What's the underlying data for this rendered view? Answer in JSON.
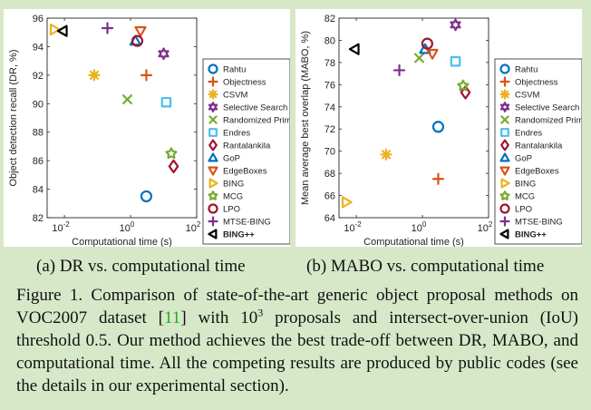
{
  "subcaptions": {
    "a": "(a) DR vs. computational time",
    "b": "(b) MABO vs. computational time"
  },
  "caption": {
    "label": "Figure 1.",
    "text_1": " Comparison of state-of-the-art generic object proposal methods on VOC2007 dataset [",
    "ref": "11",
    "text_2": "] with 10",
    "sup": "3",
    "text_3": " proposals and intersect-over-union (IoU) threshold 0.5. Our method achieves the best trade-off between DR, MABO, and computational time. All the competing results are produced by public codes (see the details in our experimental section)."
  },
  "methods": [
    {
      "name": "Rahtu",
      "marker": "circle",
      "color": "#0072bd"
    },
    {
      "name": "Objectness",
      "marker": "plus",
      "color": "#d95319"
    },
    {
      "name": "CSVM",
      "marker": "asterisk",
      "color": "#edb120"
    },
    {
      "name": "Selective Search",
      "marker": "hexagram",
      "color": "#7e2f8e"
    },
    {
      "name": "Randomized Prim",
      "marker": "x",
      "color": "#77ac30"
    },
    {
      "name": "Endres",
      "marker": "square",
      "color": "#4dbeee"
    },
    {
      "name": "Rantalankila",
      "marker": "diamond",
      "color": "#a2142f"
    },
    {
      "name": "GoP",
      "marker": "triangle-up",
      "color": "#0072bd"
    },
    {
      "name": "EdgeBoxes",
      "marker": "triangle-down",
      "color": "#d95319"
    },
    {
      "name": "BING",
      "marker": "triangle-right",
      "color": "#edb120"
    },
    {
      "name": "MCG",
      "marker": "pentagram",
      "color": "#77ac30"
    },
    {
      "name": "LPO",
      "marker": "circle",
      "color": "#a2142f"
    },
    {
      "name": "MTSE-BING",
      "marker": "plus",
      "color": "#7e2f8e"
    },
    {
      "name": "BING++",
      "marker": "triangle-left",
      "color": "#000000",
      "bold": true
    }
  ],
  "chart_data": [
    {
      "type": "scatter",
      "xlabel": "Computational time (s)",
      "ylabel": "Object detection recall (DR, %)",
      "xscale": "log",
      "xlim": [
        0.003,
        100
      ],
      "ylim": [
        82,
        96
      ],
      "xticks": [
        0.01,
        1,
        100
      ],
      "xtick_labels": [
        {
          "base": "10",
          "exp": "-2"
        },
        {
          "base": "10",
          "exp": "0"
        },
        {
          "base": "10",
          "exp": "2"
        }
      ],
      "yticks": [
        82,
        84,
        86,
        88,
        90,
        92,
        94,
        96
      ],
      "legend": "right",
      "grid": false,
      "points": {
        "Rahtu": [
          3,
          83.5
        ],
        "Objectness": [
          3,
          92
        ],
        "CSVM": [
          0.08,
          92
        ],
        "Selective Search": [
          10,
          93.5
        ],
        "Randomized Prim": [
          0.8,
          90.3
        ],
        "Endres": [
          12,
          90.1
        ],
        "Rantalankila": [
          20,
          85.6
        ],
        "GoP": [
          1.4,
          94.4
        ],
        "EdgeBoxes": [
          2,
          95.1
        ],
        "BING": [
          0.005,
          95.2
        ],
        "MCG": [
          17,
          86.5
        ],
        "LPO": [
          1.6,
          94.4
        ],
        "MTSE-BING": [
          0.2,
          95.3
        ],
        "BING++": [
          0.009,
          95.1
        ]
      }
    },
    {
      "type": "scatter",
      "xlabel": "Computational time (s)",
      "ylabel": "Mean average best overlap (MABO, %)",
      "xscale": "log",
      "xlim": [
        0.003,
        100
      ],
      "ylim": [
        64,
        82
      ],
      "xticks": [
        0.01,
        1,
        100
      ],
      "xtick_labels": [
        {
          "base": "10",
          "exp": "-2"
        },
        {
          "base": "10",
          "exp": "0"
        },
        {
          "base": "10",
          "exp": "2"
        }
      ],
      "yticks": [
        64,
        66,
        68,
        70,
        72,
        74,
        76,
        78,
        80,
        82
      ],
      "legend": "right",
      "grid": false,
      "points": {
        "Rahtu": [
          3,
          72.2
        ],
        "Objectness": [
          3,
          67.5
        ],
        "CSVM": [
          0.08,
          69.7
        ],
        "Selective Search": [
          10,
          81.4
        ],
        "Randomized Prim": [
          0.8,
          78.4
        ],
        "Endres": [
          10,
          78.1
        ],
        "Rantalankila": [
          20,
          75.3
        ],
        "GoP": [
          1.2,
          79.2
        ],
        "EdgeBoxes": [
          2,
          78.8
        ],
        "BING": [
          0.005,
          65.4
        ],
        "MCG": [
          17,
          75.9
        ],
        "LPO": [
          1.4,
          79.7
        ],
        "MTSE-BING": [
          0.2,
          77.3
        ],
        "BING++": [
          0.009,
          79.2
        ]
      }
    }
  ]
}
